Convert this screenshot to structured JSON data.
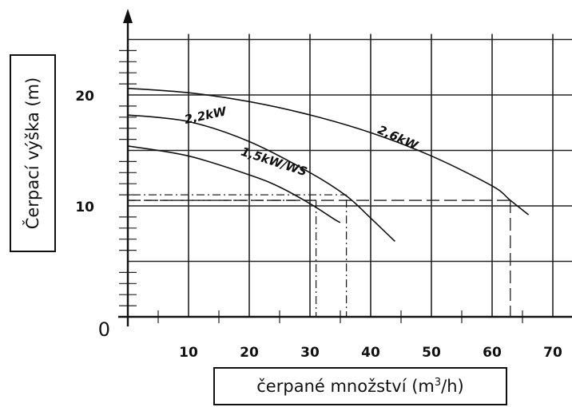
{
  "chart_data": {
    "type": "line",
    "title": "",
    "xlabel": "čerpané množství (m³/h)",
    "ylabel": "Čerpací výška (m)",
    "xlim": [
      0,
      70
    ],
    "ylim": [
      0,
      25
    ],
    "origin_label": "0",
    "x_ticks": [
      "10",
      "20",
      "30",
      "40",
      "50",
      "60",
      "70"
    ],
    "y_ticks": [
      "10",
      "20"
    ],
    "grid": true,
    "series": [
      {
        "name": "1,5kW/WS",
        "x": [
          0,
          10,
          20,
          25,
          30,
          34,
          35
        ],
        "y": [
          15.4,
          14.5,
          12.8,
          11.7,
          10.2,
          8.8,
          8.5
        ]
      },
      {
        "name": "2,2kW",
        "x": [
          0,
          10,
          20,
          30,
          36,
          40,
          44
        ],
        "y": [
          18.2,
          17.6,
          15.8,
          13.0,
          10.9,
          8.9,
          6.8
        ]
      },
      {
        "name": "2,6kW",
        "x": [
          0,
          10,
          20,
          30,
          40,
          50,
          60,
          63,
          66
        ],
        "y": [
          20.6,
          20.2,
          19.4,
          18.2,
          16.6,
          14.5,
          11.8,
          10.5,
          9.2
        ]
      }
    ],
    "operating_points": [
      {
        "x": 31,
        "y": 10.5
      },
      {
        "x": 36,
        "y": 11.0
      },
      {
        "x": 63,
        "y": 10.5
      }
    ]
  }
}
